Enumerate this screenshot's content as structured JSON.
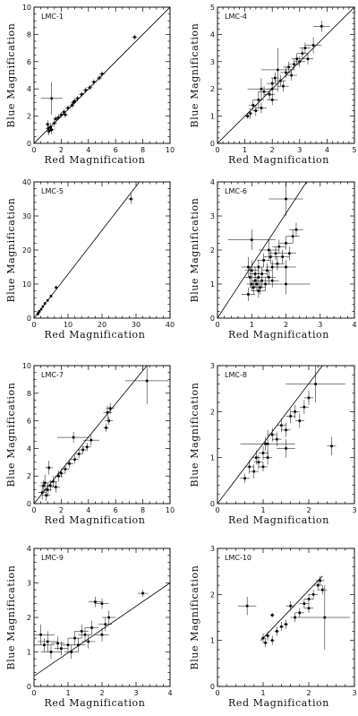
{
  "figure": {
    "x_axis_label": "Red Magnification",
    "y_axis_label": "Blue Magnification"
  },
  "chart_data": [
    {
      "type": "scatter",
      "title": "LMC-1",
      "xlabel": "Red Magnification",
      "ylabel": "Blue Magnification",
      "xlim": [
        0,
        10
      ],
      "ylim": [
        0,
        10
      ],
      "xticks": [
        0,
        2,
        4,
        6,
        8,
        10
      ],
      "yticks": [
        0,
        2,
        4,
        6,
        8,
        10
      ],
      "fit_line": [
        [
          0,
          0
        ],
        [
          10,
          10
        ]
      ],
      "points": [
        [
          7.4,
          7.8,
          0.2,
          0.2
        ],
        [
          1.3,
          3.3,
          0.8,
          1.2
        ],
        [
          1.0,
          1.4,
          0.15,
          0.3
        ],
        [
          1.05,
          1.1,
          0.2,
          0.4
        ],
        [
          1.1,
          0.9,
          0.2,
          0.3
        ],
        [
          1.2,
          1.2,
          0.15,
          0.3
        ],
        [
          1.3,
          1.0,
          0.2,
          0.3
        ],
        [
          1.5,
          1.5,
          0.2,
          0.3
        ],
        [
          1.6,
          1.8,
          0.2,
          0.2
        ],
        [
          1.8,
          1.9,
          0.2,
          0.2
        ],
        [
          2.0,
          2.1,
          0.2,
          0.2
        ],
        [
          2.2,
          2.3,
          0.2,
          0.2
        ],
        [
          2.5,
          2.6,
          0.2,
          0.2
        ],
        [
          2.8,
          2.8,
          0.2,
          0.2
        ],
        [
          3.0,
          3.1,
          0.2,
          0.2
        ],
        [
          3.2,
          3.3,
          0.2,
          0.2
        ],
        [
          3.5,
          3.6,
          0.2,
          0.2
        ],
        [
          3.8,
          3.9,
          0.2,
          0.2
        ],
        [
          4.1,
          4.1,
          0.2,
          0.2
        ],
        [
          4.4,
          4.5,
          0.2,
          0.2
        ],
        [
          4.8,
          4.8,
          0.2,
          0.2
        ],
        [
          5.0,
          5.1,
          0.2,
          0.2
        ],
        [
          2.3,
          2.1,
          0.2,
          0.2
        ],
        [
          2.9,
          3.0,
          0.2,
          0.2
        ]
      ]
    },
    {
      "type": "scatter",
      "title": "LMC-4",
      "xlabel": "Red Magnification",
      "ylabel": "Blue Magnification",
      "xlim": [
        0,
        5
      ],
      "ylim": [
        0,
        5
      ],
      "xticks": [
        0,
        1,
        2,
        3,
        4,
        5
      ],
      "yticks": [
        0,
        1,
        2,
        3,
        4,
        5
      ],
      "fit_line": [
        [
          0,
          0
        ],
        [
          5,
          5
        ]
      ],
      "points": [
        [
          3.8,
          4.3,
          0.3,
          0.2
        ],
        [
          2.2,
          2.7,
          0.6,
          0.8
        ],
        [
          1.6,
          2.0,
          0.5,
          0.4
        ],
        [
          2.0,
          2.0,
          0.2,
          0.3
        ],
        [
          1.1,
          1.0,
          0.1,
          0.1
        ],
        [
          1.2,
          1.1,
          0.1,
          0.2
        ],
        [
          1.3,
          1.4,
          0.15,
          0.2
        ],
        [
          1.4,
          1.2,
          0.1,
          0.2
        ],
        [
          1.5,
          1.6,
          0.2,
          0.3
        ],
        [
          1.7,
          1.9,
          0.2,
          0.2
        ],
        [
          1.9,
          1.8,
          0.2,
          0.2
        ],
        [
          2.0,
          2.2,
          0.2,
          0.2
        ],
        [
          2.1,
          2.4,
          0.15,
          0.2
        ],
        [
          2.3,
          2.3,
          0.2,
          0.2
        ],
        [
          2.5,
          2.6,
          0.2,
          0.2
        ],
        [
          2.6,
          2.8,
          0.2,
          0.2
        ],
        [
          2.8,
          2.9,
          0.2,
          0.2
        ],
        [
          2.9,
          3.1,
          0.2,
          0.2
        ],
        [
          3.0,
          3.0,
          0.2,
          0.2
        ],
        [
          3.1,
          3.3,
          0.2,
          0.2
        ],
        [
          3.2,
          3.5,
          0.2,
          0.2
        ],
        [
          3.3,
          3.1,
          0.2,
          0.2
        ],
        [
          3.5,
          3.6,
          0.3,
          0.3
        ],
        [
          2.4,
          2.1,
          0.2,
          0.2
        ],
        [
          1.6,
          1.3,
          0.2,
          0.2
        ],
        [
          2.7,
          2.5,
          0.2,
          0.2
        ],
        [
          2.0,
          1.6,
          0.2,
          0.2
        ]
      ]
    },
    {
      "type": "scatter",
      "title": "LMC-5",
      "xlabel": "Red Magnification",
      "ylabel": "Blue Magnification",
      "xlim": [
        0,
        40
      ],
      "ylim": [
        0,
        40
      ],
      "xticks": [
        0,
        10,
        20,
        30,
        40
      ],
      "yticks": [
        0,
        10,
        20,
        30,
        40
      ],
      "fit_line": [
        [
          0,
          0
        ],
        [
          31,
          40
        ]
      ],
      "points": [
        [
          28.5,
          35,
          0.8,
          1.5
        ],
        [
          6.5,
          9.0,
          0.4,
          0.4
        ],
        [
          5.0,
          6.5,
          0.4,
          0.4
        ],
        [
          4.0,
          5.2,
          0.3,
          0.3
        ],
        [
          3.2,
          4.3,
          0.3,
          0.3
        ],
        [
          2.6,
          3.4,
          0.2,
          0.3
        ],
        [
          2.1,
          2.6,
          0.2,
          0.2
        ],
        [
          1.6,
          2.0,
          0.2,
          0.2
        ],
        [
          1.3,
          1.6,
          0.2,
          0.2
        ],
        [
          1.1,
          1.2,
          0.2,
          0.2
        ]
      ]
    },
    {
      "type": "scatter",
      "title": "LMC-6",
      "xlabel": "Red Magnification",
      "ylabel": "Blue Magnification",
      "xlim": [
        0,
        4
      ],
      "ylim": [
        0,
        4
      ],
      "xticks": [
        0,
        1,
        2,
        3,
        4
      ],
      "yticks": [
        0,
        1,
        2,
        3,
        4
      ],
      "fit_line": [
        [
          0,
          0
        ],
        [
          2.6,
          4
        ]
      ],
      "points": [
        [
          2.0,
          3.5,
          0.5,
          0.5
        ],
        [
          1.0,
          2.3,
          0.7,
          0.3
        ],
        [
          2.0,
          1.0,
          0.7,
          0.3
        ],
        [
          0.9,
          0.7,
          0.2,
          0.2
        ],
        [
          0.95,
          1.2,
          0.15,
          0.3
        ],
        [
          1.0,
          1.0,
          0.15,
          0.2
        ],
        [
          1.0,
          1.4,
          0.2,
          0.3
        ],
        [
          1.05,
          0.9,
          0.1,
          0.2
        ],
        [
          1.1,
          1.1,
          0.1,
          0.2
        ],
        [
          1.1,
          1.3,
          0.15,
          0.2
        ],
        [
          1.15,
          1.0,
          0.1,
          0.2
        ],
        [
          1.2,
          1.2,
          0.1,
          0.2
        ],
        [
          1.2,
          1.5,
          0.15,
          0.2
        ],
        [
          1.25,
          0.9,
          0.15,
          0.2
        ],
        [
          1.3,
          1.1,
          0.1,
          0.2
        ],
        [
          1.3,
          1.3,
          0.15,
          0.2
        ],
        [
          1.35,
          1.7,
          0.2,
          0.2
        ],
        [
          1.4,
          1.0,
          0.15,
          0.2
        ],
        [
          1.45,
          1.4,
          0.15,
          0.2
        ],
        [
          1.5,
          1.2,
          0.2,
          0.2
        ],
        [
          1.55,
          1.8,
          0.2,
          0.2
        ],
        [
          1.6,
          1.5,
          0.2,
          0.2
        ],
        [
          1.7,
          1.9,
          0.2,
          0.2
        ],
        [
          1.75,
          1.6,
          0.2,
          0.2
        ],
        [
          1.8,
          2.1,
          0.2,
          0.2
        ],
        [
          1.9,
          1.8,
          0.2,
          0.2
        ],
        [
          2.0,
          2.2,
          0.2,
          0.2
        ],
        [
          2.1,
          1.9,
          0.2,
          0.2
        ],
        [
          2.2,
          2.4,
          0.2,
          0.2
        ],
        [
          2.3,
          2.6,
          0.2,
          0.2
        ],
        [
          1.5,
          2.0,
          0.3,
          0.3
        ],
        [
          1.2,
          0.8,
          0.2,
          0.2
        ],
        [
          0.9,
          1.5,
          0.2,
          0.3
        ],
        [
          1.6,
          1.1,
          0.2,
          0.2
        ],
        [
          2.0,
          1.5,
          0.3,
          0.2
        ]
      ]
    },
    {
      "type": "scatter",
      "title": "LMC-7",
      "xlabel": "Red Magnification",
      "ylabel": "Blue Magnification",
      "xlim": [
        0,
        10
      ],
      "ylim": [
        0,
        10
      ],
      "xticks": [
        0,
        2,
        4,
        6,
        8,
        10
      ],
      "yticks": [
        0,
        2,
        4,
        6,
        8,
        10
      ],
      "fit_line": [
        [
          0,
          0
        ],
        [
          8.3,
          10
        ]
      ],
      "points": [
        [
          8.3,
          8.9,
          1.6,
          1.7
        ],
        [
          2.9,
          4.8,
          1.2,
          0.4
        ],
        [
          4.2,
          4.6,
          0.6,
          0.4
        ],
        [
          1.0,
          1.0,
          0.3,
          0.5
        ],
        [
          0.8,
          1.5,
          0.3,
          0.6
        ],
        [
          0.6,
          0.8,
          0.3,
          0.5
        ],
        [
          1.2,
          1.3,
          0.3,
          0.4
        ],
        [
          0.9,
          0.6,
          0.3,
          0.4
        ],
        [
          1.4,
          1.6,
          0.3,
          0.4
        ],
        [
          1.6,
          1.2,
          0.3,
          0.4
        ],
        [
          1.8,
          2.0,
          0.3,
          0.4
        ],
        [
          2.0,
          2.2,
          0.3,
          0.3
        ],
        [
          2.3,
          2.5,
          0.3,
          0.3
        ],
        [
          2.6,
          2.9,
          0.3,
          0.3
        ],
        [
          3.0,
          3.2,
          0.3,
          0.3
        ],
        [
          3.3,
          3.6,
          0.3,
          0.3
        ],
        [
          3.6,
          3.9,
          0.3,
          0.3
        ],
        [
          3.9,
          4.1,
          0.3,
          0.3
        ],
        [
          5.4,
          6.6,
          0.3,
          0.5
        ],
        [
          5.6,
          6.9,
          0.3,
          0.4
        ],
        [
          5.3,
          5.5,
          0.2,
          0.3
        ],
        [
          5.5,
          6.0,
          0.3,
          0.3
        ],
        [
          1.1,
          2.6,
          0.3,
          0.5
        ],
        [
          0.7,
          1.3,
          0.3,
          0.4
        ]
      ]
    },
    {
      "type": "scatter",
      "title": "LMC-8",
      "xlabel": "Red Magnification",
      "ylabel": "Blue Magnification",
      "xlim": [
        0,
        3
      ],
      "ylim": [
        0,
        3
      ],
      "xticks": [
        0,
        1,
        2,
        3
      ],
      "yticks": [
        0,
        1,
        2,
        3
      ],
      "fit_line": [
        [
          0,
          0
        ],
        [
          2.3,
          3
        ]
      ],
      "points": [
        [
          2.15,
          2.6,
          0.65,
          0.4
        ],
        [
          2.5,
          1.25,
          0.1,
          0.2
        ],
        [
          1.1,
          1.3,
          0.6,
          0.3
        ],
        [
          0.6,
          0.55,
          0.1,
          0.1
        ],
        [
          0.7,
          0.8,
          0.1,
          0.15
        ],
        [
          0.8,
          0.7,
          0.1,
          0.15
        ],
        [
          0.85,
          1.0,
          0.1,
          0.15
        ],
        [
          0.9,
          0.9,
          0.1,
          0.15
        ],
        [
          1.0,
          1.1,
          0.1,
          0.15
        ],
        [
          1.05,
          1.3,
          0.1,
          0.15
        ],
        [
          1.1,
          1.0,
          0.1,
          0.15
        ],
        [
          1.2,
          1.5,
          0.1,
          0.15
        ],
        [
          1.3,
          1.4,
          0.1,
          0.15
        ],
        [
          1.4,
          1.7,
          0.1,
          0.15
        ],
        [
          1.5,
          1.6,
          0.1,
          0.15
        ],
        [
          1.6,
          1.9,
          0.1,
          0.15
        ],
        [
          1.7,
          2.0,
          0.1,
          0.15
        ],
        [
          1.8,
          1.8,
          0.1,
          0.15
        ],
        [
          1.9,
          2.1,
          0.1,
          0.15
        ],
        [
          2.0,
          2.3,
          0.1,
          0.15
        ],
        [
          1.5,
          1.2,
          0.2,
          0.2
        ],
        [
          1.0,
          0.8,
          0.1,
          0.1
        ]
      ]
    },
    {
      "type": "scatter",
      "title": "LMC-9",
      "xlabel": "Red Magnification",
      "ylabel": "Blue Magnification",
      "xlim": [
        0,
        4
      ],
      "ylim": [
        0,
        4
      ],
      "xticks": [
        0,
        1,
        2,
        3,
        4
      ],
      "yticks": [
        0,
        1,
        2,
        3,
        4
      ],
      "fit_line": [
        [
          0,
          0.3
        ],
        [
          4,
          3
        ]
      ],
      "points": [
        [
          3.2,
          2.7,
          0.15,
          0.1
        ],
        [
          0.2,
          1.5,
          0.4,
          0.3
        ],
        [
          0.3,
          1.2,
          0.3,
          0.2
        ],
        [
          0.5,
          1.0,
          0.3,
          0.2
        ],
        [
          0.7,
          1.25,
          0.2,
          0.2
        ],
        [
          0.8,
          1.1,
          0.2,
          0.2
        ],
        [
          1.0,
          1.2,
          0.2,
          0.2
        ],
        [
          1.1,
          1.0,
          0.2,
          0.2
        ],
        [
          1.2,
          1.4,
          0.2,
          0.2
        ],
        [
          1.3,
          1.2,
          0.2,
          0.2
        ],
        [
          1.5,
          1.5,
          0.2,
          0.2
        ],
        [
          1.6,
          1.3,
          0.2,
          0.2
        ],
        [
          1.7,
          1.7,
          0.2,
          0.2
        ],
        [
          1.8,
          2.45,
          0.2,
          0.15
        ],
        [
          2.0,
          2.4,
          0.2,
          0.15
        ],
        [
          2.1,
          1.8,
          0.2,
          0.2
        ],
        [
          2.2,
          2.0,
          0.2,
          0.2
        ],
        [
          1.4,
          1.6,
          0.2,
          0.2
        ],
        [
          0.4,
          1.3,
          0.3,
          0.3
        ],
        [
          2.0,
          1.5,
          0.2,
          0.2
        ]
      ]
    },
    {
      "type": "scatter",
      "title": "LMC-10",
      "xlabel": "Red Magnification",
      "ylabel": "Blue Magnification",
      "xlim": [
        0,
        3
      ],
      "ylim": [
        0,
        3
      ],
      "xticks": [
        0,
        1,
        2,
        3
      ],
      "yticks": [
        0,
        1,
        2,
        3
      ],
      "fit_line": [
        [
          0.95,
          1
        ],
        [
          2.3,
          2.4
        ]
      ],
      "points": [
        [
          0.65,
          1.75,
          0.2,
          0.2
        ],
        [
          1.2,
          1.55,
          0.05,
          0.05
        ],
        [
          1.0,
          1.05,
          0.05,
          0.1
        ],
        [
          1.05,
          0.95,
          0.05,
          0.1
        ],
        [
          1.1,
          1.1,
          0.05,
          0.1
        ],
        [
          1.2,
          1.0,
          0.05,
          0.1
        ],
        [
          1.3,
          1.2,
          0.05,
          0.1
        ],
        [
          1.4,
          1.3,
          0.05,
          0.1
        ],
        [
          1.5,
          1.35,
          0.05,
          0.1
        ],
        [
          1.6,
          1.75,
          0.1,
          0.1
        ],
        [
          1.7,
          1.5,
          0.1,
          0.1
        ],
        [
          1.8,
          1.6,
          0.1,
          0.1
        ],
        [
          1.9,
          1.8,
          0.1,
          0.1
        ],
        [
          2.0,
          1.7,
          0.1,
          0.1
        ],
        [
          2.1,
          2.0,
          0.1,
          0.1
        ],
        [
          2.2,
          2.2,
          0.1,
          0.1
        ],
        [
          2.25,
          2.3,
          0.1,
          0.1
        ],
        [
          2.3,
          2.1,
          0.1,
          0.1
        ],
        [
          2.35,
          1.5,
          0.55,
          0.7
        ],
        [
          2.0,
          1.9,
          0.1,
          0.1
        ]
      ]
    }
  ]
}
